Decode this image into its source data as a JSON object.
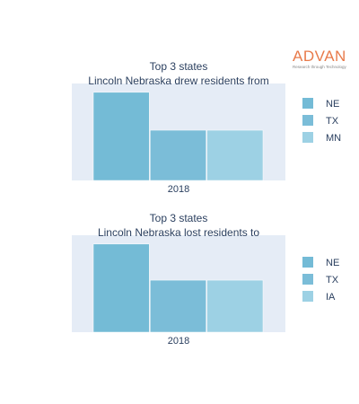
{
  "brand": {
    "name": "ADVAN",
    "tagline": "Research through Technology"
  },
  "chart_data": [
    {
      "type": "bar",
      "title_lines": [
        "Top 3 states",
        "Lincoln Nebraska drew residents from"
      ],
      "categories": [
        "2018"
      ],
      "series": [
        {
          "name": "NE",
          "values": [
            100
          ],
          "color": "#74bbd6"
        },
        {
          "name": "TX",
          "values": [
            57
          ],
          "color": "#7bbdd8"
        },
        {
          "name": "MN",
          "values": [
            57
          ],
          "color": "#9dd1e4"
        }
      ],
      "ylim": [
        0,
        110
      ],
      "grid": true,
      "legend_position": "right"
    },
    {
      "type": "bar",
      "title_lines": [
        "Top 3 states",
        "Lincoln Nebraska lost residents to"
      ],
      "categories": [
        "2018"
      ],
      "series": [
        {
          "name": "NE",
          "values": [
            100
          ],
          "color": "#74bbd6"
        },
        {
          "name": "TX",
          "values": [
            59
          ],
          "color": "#7bbdd8"
        },
        {
          "name": "IA",
          "values": [
            59
          ],
          "color": "#9dd1e4"
        }
      ],
      "ylim": [
        0,
        110
      ],
      "grid": true,
      "legend_position": "right"
    }
  ]
}
